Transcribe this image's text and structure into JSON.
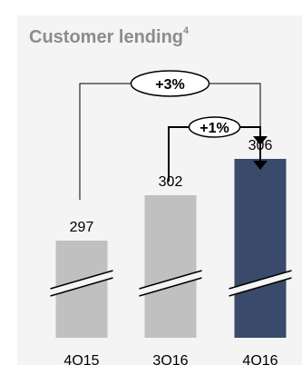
{
  "chart_data": {
    "type": "bar",
    "title": "Customer lending",
    "title_footnote": "4",
    "categories": [
      "4Q15",
      "3Q16",
      "4Q16"
    ],
    "values": [
      297,
      302,
      306
    ],
    "colors": [
      "#c0c0c0",
      "#c0c0c0",
      "#3a4a6b"
    ],
    "axis_break": true,
    "annotations": [
      {
        "label": "+3%",
        "from": "4Q15",
        "to": "4Q16"
      },
      {
        "label": "+1%",
        "from": "3Q16",
        "to": "4Q16"
      }
    ]
  }
}
